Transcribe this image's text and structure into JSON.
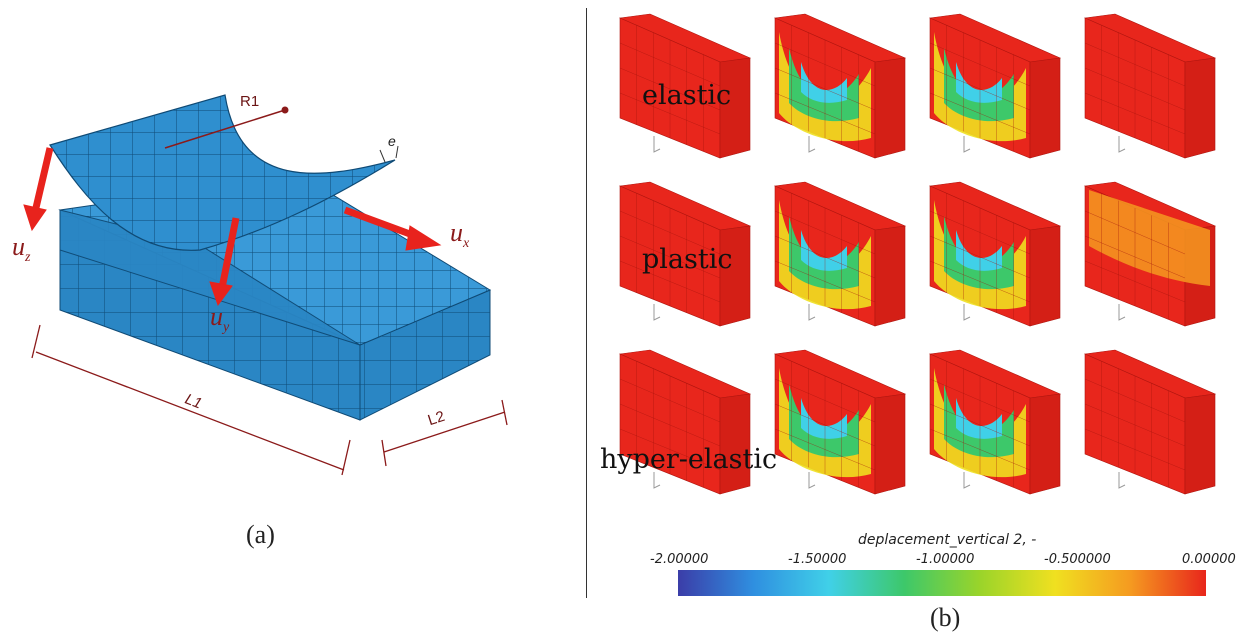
{
  "panel_a": {
    "caption": "(a)",
    "labels": {
      "r1": "R1",
      "e": "e",
      "ux": "u",
      "ux_sub": "x",
      "uz": "u",
      "uz_sub": "z",
      "uy": "u",
      "uy_sub": "y",
      "l1": "L1",
      "l2": "L2"
    },
    "colors": {
      "mesh": "#2f8fcf",
      "mesh_dark": "#1d6fa8",
      "arrow": "#e8231d",
      "dim": "#8b1a1a"
    }
  },
  "panel_b": {
    "caption": "(b)",
    "rows": [
      {
        "label": "elastic"
      },
      {
        "label": "plastic"
      },
      {
        "label": "hyper-elastic"
      }
    ],
    "colorbar": {
      "title": "deplacement_vertical 2, -",
      "ticks": [
        "-2.00000",
        "-1.50000",
        "-1.00000",
        "-0.500000",
        "0.00000"
      ],
      "colors": [
        "#3b3da8",
        "#2f8fe0",
        "#40d0e8",
        "#3dc86a",
        "#9ad42a",
        "#f0e020",
        "#f59a20",
        "#e8261c"
      ]
    }
  }
}
